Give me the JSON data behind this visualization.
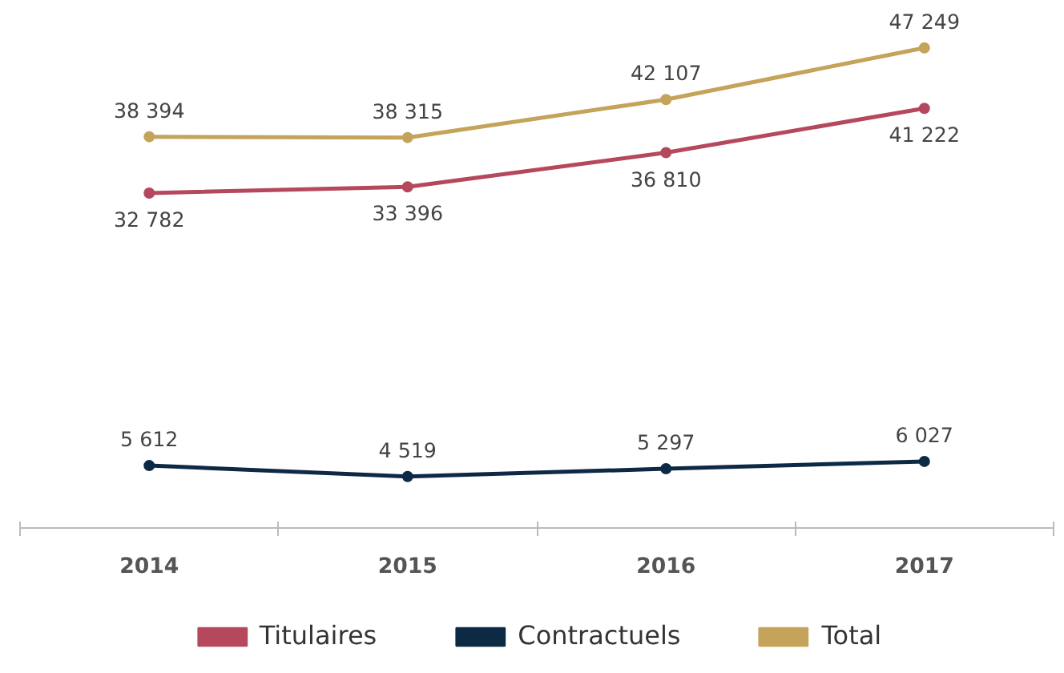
{
  "chart_data": {
    "type": "line",
    "categories": [
      "2014",
      "2015",
      "2016",
      "2017"
    ],
    "series": [
      {
        "name": "Titulaires",
        "color": "#b5485d",
        "values": [
          32782,
          33396,
          36810,
          41222
        ]
      },
      {
        "name": "Contractuels",
        "color": "#0d2a45",
        "values": [
          5612,
          4519,
          5297,
          6027
        ]
      },
      {
        "name": "Total",
        "color": "#c4a35a",
        "values": [
          38394,
          38315,
          42107,
          47249
        ]
      }
    ],
    "data_labels": true,
    "marker": "circle",
    "legend": "bottom"
  }
}
